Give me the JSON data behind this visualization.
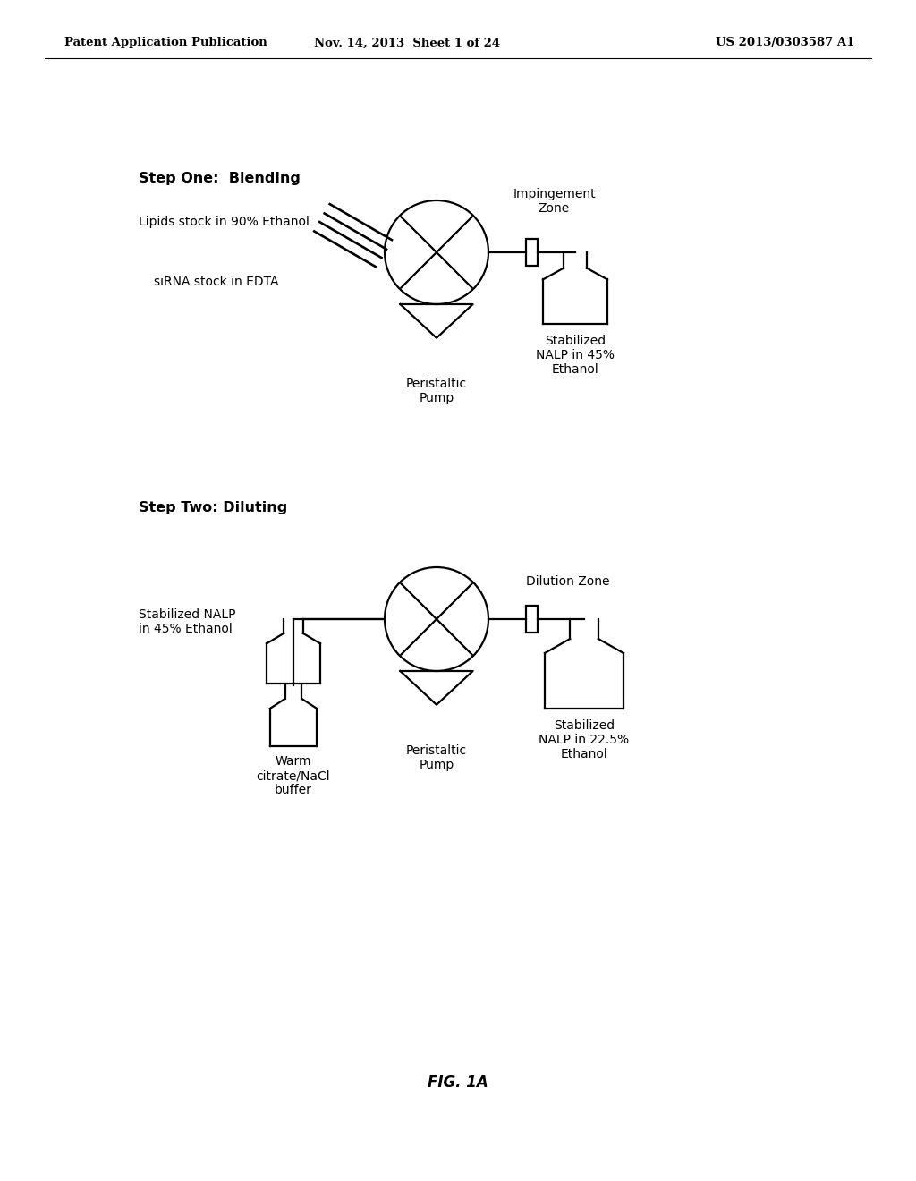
{
  "bg_color": "#ffffff",
  "header_left": "Patent Application Publication",
  "header_mid": "Nov. 14, 2013  Sheet 1 of 24",
  "header_right": "US 2013/0303587 A1",
  "step1_title": "Step One:  Blending",
  "step1_label_lipids": "Lipids stock in 90% Ethanol",
  "step1_label_sirna": "siRNA stock in EDTA",
  "step1_label_pump": "Peristaltic\nPump",
  "step1_label_zone": "Impingement\nZone",
  "step1_label_bottle": "Stabilized\nNALP in 45%\nEthanol",
  "step2_title": "Step Two: Diluting",
  "step2_label_input": "Stabilized NALP\nin 45% Ethanol",
  "step2_label_warm": "Warm\ncitrate/NaCl\nbuffer",
  "step2_label_pump": "Peristaltic\nPump",
  "step2_label_zone": "Dilution Zone",
  "step2_label_bottle": "Stabilized\nNALP in 22.5%\nEthanol",
  "fig_label": "FIG. 1A",
  "line_color": "#000000",
  "text_color": "#000000",
  "lw": 1.6
}
